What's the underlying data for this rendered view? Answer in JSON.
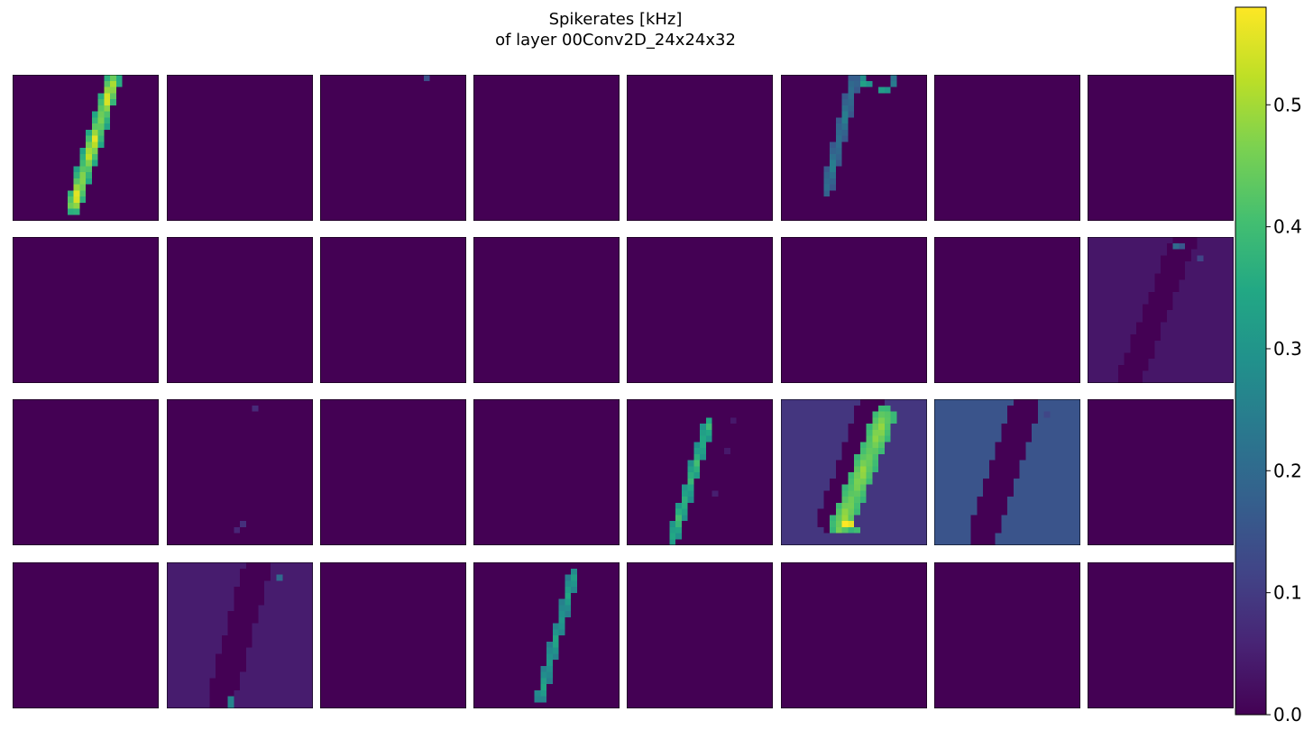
{
  "chart_data": {
    "type": "heatmap",
    "title": "Spikerates [kHz]",
    "subtitle": "of layer 00Conv2D_24x24x32",
    "grid": {
      "rows": 4,
      "cols": 8
    },
    "map_size": 24,
    "colormap": "viridis",
    "vmin": 0.0,
    "vmax": 0.58,
    "colorbar_ticks": [
      "0.0",
      "0.1",
      "0.2",
      "0.3",
      "0.4",
      "0.5"
    ],
    "colorbar_tick_values": [
      0.0,
      0.1,
      0.2,
      0.3,
      0.4,
      0.5
    ],
    "maps": [
      {
        "index": 0,
        "background": 0.0,
        "stroke": {
          "x0": 10,
          "y0": 21.5,
          "x1": 16.5,
          "y1": 1,
          "width": 2,
          "peak": 0.58,
          "edge": 0.33
        },
        "spots": []
      },
      {
        "index": 1,
        "background": 0.0,
        "stroke": null,
        "spots": []
      },
      {
        "index": 2,
        "background": 0.0,
        "stroke": null,
        "spots": [
          {
            "x": 17,
            "y": 0,
            "v": 0.14
          }
        ]
      },
      {
        "index": 3,
        "background": 0.0,
        "stroke": null,
        "spots": []
      },
      {
        "index": 4,
        "background": 0.0,
        "stroke": null,
        "spots": []
      },
      {
        "index": 5,
        "background": 0.0,
        "stroke": {
          "x0": 7.5,
          "y0": 19,
          "x1": 12,
          "y1": 1,
          "width": 1,
          "peak": 0.26,
          "edge": 0.16
        },
        "spots": [
          {
            "x": 13,
            "y": 0,
            "v": 0.28
          },
          {
            "x": 13,
            "y": 1,
            "v": 0.33
          },
          {
            "x": 14,
            "y": 1,
            "v": 0.3
          },
          {
            "x": 16,
            "y": 2,
            "v": 0.32
          },
          {
            "x": 17,
            "y": 2,
            "v": 0.3
          },
          {
            "x": 18,
            "y": 1,
            "v": 0.24
          },
          {
            "x": 18,
            "y": 0,
            "v": 0.22
          }
        ]
      },
      {
        "index": 6,
        "background": 0.0,
        "stroke": null,
        "spots": []
      },
      {
        "index": 7,
        "background": 0.0,
        "stroke": null,
        "spots": []
      },
      {
        "index": 8,
        "background": 0.0,
        "stroke": null,
        "spots": []
      },
      {
        "index": 9,
        "background": 0.0,
        "stroke": null,
        "spots": []
      },
      {
        "index": 10,
        "background": 0.0,
        "stroke": null,
        "spots": []
      },
      {
        "index": 11,
        "background": 0.0,
        "stroke": null,
        "spots": []
      },
      {
        "index": 12,
        "background": 0.0,
        "stroke": null,
        "spots": []
      },
      {
        "index": 13,
        "background": 0.0,
        "stroke": null,
        "spots": []
      },
      {
        "index": 14,
        "background": 0.0,
        "stroke": null,
        "spots": []
      },
      {
        "index": 15,
        "background": 0.035,
        "hole": {
          "x0": 7,
          "y0": 23,
          "x1": 16,
          "y1": 0,
          "width": 4,
          "v": 0.0
        },
        "spots": [
          {
            "x": 14,
            "y": 1,
            "v": 0.2
          },
          {
            "x": 15,
            "y": 1,
            "v": 0.16
          },
          {
            "x": 18,
            "y": 3,
            "v": 0.12
          }
        ]
      },
      {
        "index": 16,
        "background": 0.0,
        "stroke": null,
        "spots": []
      },
      {
        "index": 17,
        "background": 0.0,
        "stroke": null,
        "spots": [
          {
            "x": 14,
            "y": 1,
            "v": 0.07
          },
          {
            "x": 12,
            "y": 20,
            "v": 0.08
          },
          {
            "x": 11,
            "y": 21,
            "v": 0.06
          }
        ]
      },
      {
        "index": 18,
        "background": 0.0,
        "stroke": null,
        "spots": []
      },
      {
        "index": 19,
        "background": 0.0,
        "stroke": null,
        "spots": []
      },
      {
        "index": 20,
        "background": 0.0,
        "stroke": {
          "x0": 7.5,
          "y0": 23,
          "x1": 13.5,
          "y1": 4,
          "width": 1.2,
          "peak": 0.42,
          "edge": 0.28
        },
        "spots": [
          {
            "x": 17,
            "y": 3,
            "v": 0.04
          },
          {
            "x": 16,
            "y": 8,
            "v": 0.04
          },
          {
            "x": 14,
            "y": 15,
            "v": 0.05
          }
        ]
      },
      {
        "index": 21,
        "background": 0.09,
        "hole": {
          "x0": 8,
          "y0": 20,
          "x1": 15,
          "y1": 0,
          "width": 4,
          "v": 0.0
        },
        "stroke": {
          "x0": 10,
          "y0": 20.5,
          "x1": 17,
          "y1": 3,
          "width": 3,
          "peak": 0.5,
          "edge": 0.38
        },
        "spots": [
          {
            "x": 10,
            "y": 20,
            "v": 0.58
          },
          {
            "x": 11,
            "y": 20,
            "v": 0.56
          },
          {
            "x": 9,
            "y": 21,
            "v": 0.46
          },
          {
            "x": 12,
            "y": 21,
            "v": 0.4
          }
        ]
      },
      {
        "index": 22,
        "background": 0.15,
        "hole": {
          "x0": 8,
          "y0": 22,
          "x1": 15,
          "y1": 1,
          "width": 4.5,
          "v": 0.0
        },
        "spots": [
          {
            "x": 18,
            "y": 2,
            "v": 0.12
          }
        ]
      },
      {
        "index": 23,
        "background": 0.0,
        "stroke": null,
        "spots": []
      },
      {
        "index": 24,
        "background": 0.0,
        "stroke": null,
        "spots": []
      },
      {
        "index": 25,
        "background": 0.045,
        "hole": {
          "x0": 9,
          "y0": 22,
          "x1": 15,
          "y1": 0,
          "width": 4.5,
          "v": 0.0
        },
        "spots": [
          {
            "x": 10,
            "y": 22,
            "v": 0.26
          },
          {
            "x": 10,
            "y": 23,
            "v": 0.26
          },
          {
            "x": 18,
            "y": 2,
            "v": 0.2
          }
        ]
      },
      {
        "index": 26,
        "background": 0.0,
        "stroke": null,
        "spots": []
      },
      {
        "index": 27,
        "background": 0.0,
        "stroke": {
          "x0": 11,
          "y0": 22,
          "x1": 16.5,
          "y1": 2,
          "width": 1,
          "peak": 0.36,
          "edge": 0.24
        },
        "spots": []
      },
      {
        "index": 28,
        "background": 0.0,
        "stroke": null,
        "spots": []
      },
      {
        "index": 29,
        "background": 0.0,
        "stroke": null,
        "spots": []
      },
      {
        "index": 30,
        "background": 0.0,
        "stroke": null,
        "spots": []
      },
      {
        "index": 31,
        "background": 0.0,
        "stroke": null,
        "spots": []
      }
    ]
  }
}
